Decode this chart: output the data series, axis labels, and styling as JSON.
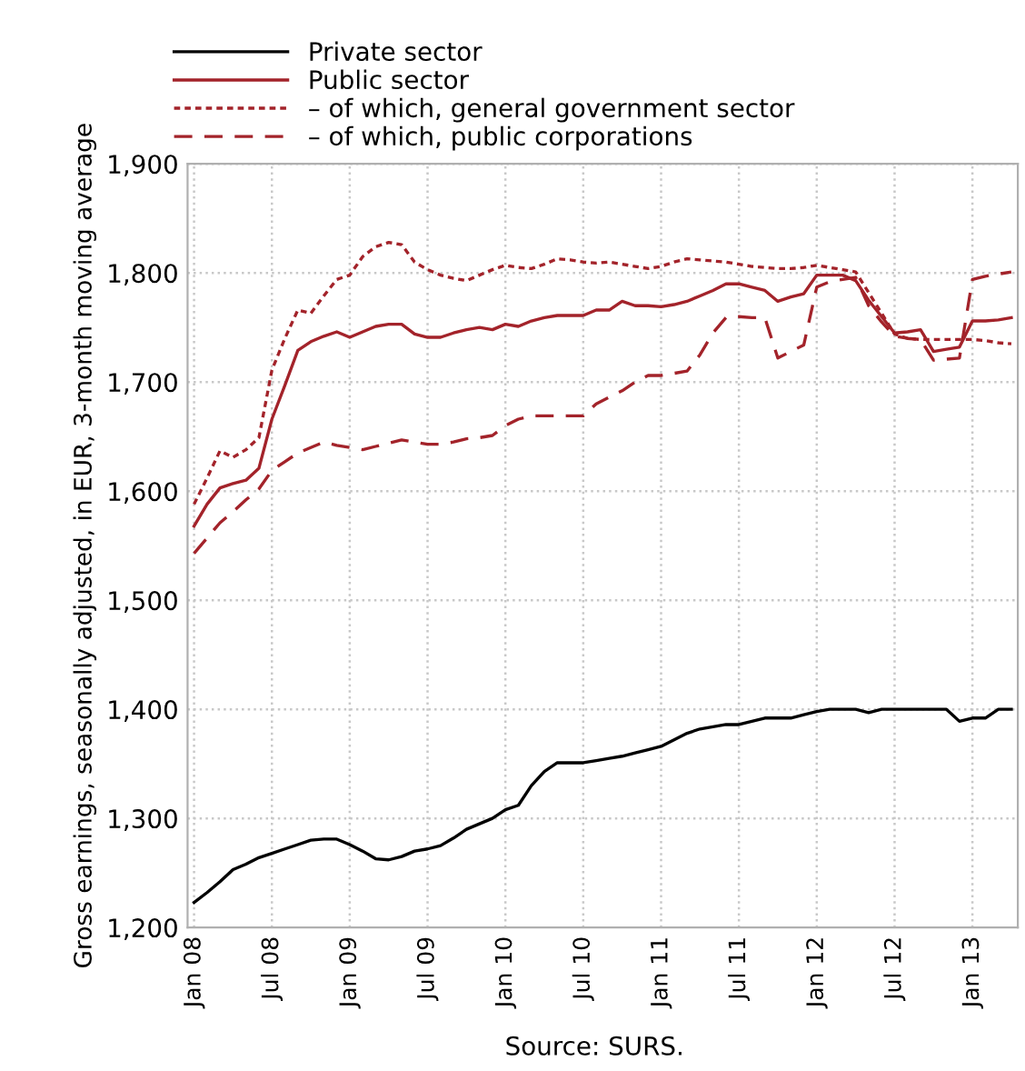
{
  "chart_data": {
    "type": "line",
    "ylabel": "Gross earnings, seasonally adjusted, in EUR, 3-month moving average",
    "annotations": [
      "Source: SURS."
    ],
    "categories": [
      "Jan 08",
      null,
      null,
      null,
      null,
      null,
      "Jul 08",
      null,
      null,
      null,
      null,
      null,
      "Jan 09",
      null,
      null,
      null,
      null,
      null,
      "Jul 09",
      null,
      null,
      null,
      null,
      null,
      "Jan 10",
      null,
      null,
      null,
      null,
      null,
      "Jul 10",
      null,
      null,
      null,
      null,
      null,
      "Jan 11",
      null,
      null,
      null,
      null,
      null,
      "Jul 11",
      null,
      null,
      null,
      null,
      null,
      "Jan 12",
      null,
      null,
      null,
      null,
      null,
      "Jul 12",
      null,
      null,
      null,
      null,
      null,
      "Jan 13",
      null,
      null,
      null
    ],
    "series": [
      {
        "name": "Private sector",
        "color": "#000000",
        "line_style": "solid",
        "values": [
          1223,
          1232,
          1242,
          1253,
          1258,
          1264,
          1268,
          1272,
          1276,
          1280,
          1281,
          1281,
          1276,
          1270,
          1263,
          1262,
          1265,
          1270,
          1272,
          1275,
          1282,
          1290,
          1295,
          1300,
          1308,
          1312,
          1330,
          1343,
          1351,
          1351,
          1351,
          1353,
          1355,
          1357,
          1360,
          1363,
          1366,
          1372,
          1378,
          1382,
          1384,
          1386,
          1386,
          1389,
          1392,
          1392,
          1392,
          1395,
          1398,
          1400,
          1400,
          1400,
          1397,
          1400,
          1400,
          1400,
          1400,
          1400,
          1400,
          1389,
          1392,
          1392,
          1400,
          1400
        ]
      },
      {
        "name": "Public sector",
        "color": "#a3232a",
        "line_style": "solid",
        "values": [
          1568,
          1588,
          1603,
          1607,
          1610,
          1621,
          1666,
          1697,
          1729,
          1737,
          1742,
          1746,
          1741,
          1746,
          1751,
          1753,
          1753,
          1744,
          1741,
          1741,
          1745,
          1748,
          1750,
          1748,
          1753,
          1751,
          1756,
          1759,
          1761,
          1761,
          1761,
          1766,
          1766,
          1774,
          1770,
          1770,
          1769,
          1771,
          1774,
          1779,
          1784,
          1790,
          1790,
          1787,
          1784,
          1774,
          1778,
          1781,
          1798,
          1798,
          1798,
          1793,
          1775,
          1760,
          1745,
          1746,
          1748,
          1728,
          1730,
          1732,
          1756,
          1756,
          1757,
          1759
        ]
      },
      {
        "name": "– of which, general government sector",
        "color": "#a3232a",
        "line_style": "dotted",
        "values": [
          1588,
          1612,
          1637,
          1631,
          1638,
          1649,
          1711,
          1740,
          1766,
          1763,
          1779,
          1794,
          1798,
          1815,
          1824,
          1828,
          1826,
          1810,
          1803,
          1798,
          1795,
          1793,
          1798,
          1803,
          1807,
          1805,
          1804,
          1808,
          1813,
          1812,
          1810,
          1809,
          1810,
          1808,
          1806,
          1804,
          1806,
          1810,
          1813,
          1812,
          1811,
          1810,
          1808,
          1806,
          1805,
          1804,
          1804,
          1805,
          1807,
          1805,
          1803,
          1801,
          1782,
          1763,
          1744,
          1740,
          1739,
          1739,
          1739,
          1739,
          1739,
          1738,
          1736,
          1735
        ]
      },
      {
        "name": "– of which, public corporations",
        "color": "#a3232a",
        "line_style": "dashed",
        "values": [
          1543,
          1557,
          1571,
          1581,
          1592,
          1602,
          1619,
          1627,
          1635,
          1640,
          1645,
          1642,
          1640,
          1638,
          1641,
          1644,
          1647,
          1645,
          1643,
          1643,
          1645,
          1648,
          1649,
          1651,
          1660,
          1666,
          1669,
          1669,
          1669,
          1669,
          1669,
          1680,
          1686,
          1692,
          1700,
          1706,
          1706,
          1708,
          1710,
          1725,
          1745,
          1759,
          1760,
          1759,
          1759,
          1722,
          1728,
          1734,
          1787,
          1792,
          1794,
          1796,
          1770,
          1755,
          1742,
          1740,
          1739,
          1720,
          1721,
          1722,
          1794,
          1797,
          1799,
          1801
        ]
      }
    ],
    "ylim": [
      1200,
      1900
    ],
    "yticks": [
      {
        "value": 1200,
        "label": "1,200"
      },
      {
        "value": 1300,
        "label": "1,300"
      },
      {
        "value": 1400,
        "label": "1,400"
      },
      {
        "value": 1500,
        "label": "1,500"
      },
      {
        "value": 1600,
        "label": "1,600"
      },
      {
        "value": 1700,
        "label": "1,700"
      },
      {
        "value": 1800,
        "label": "1,800"
      },
      {
        "value": 1900,
        "label": "1,900"
      }
    ],
    "grid": true,
    "legend": "top left"
  }
}
